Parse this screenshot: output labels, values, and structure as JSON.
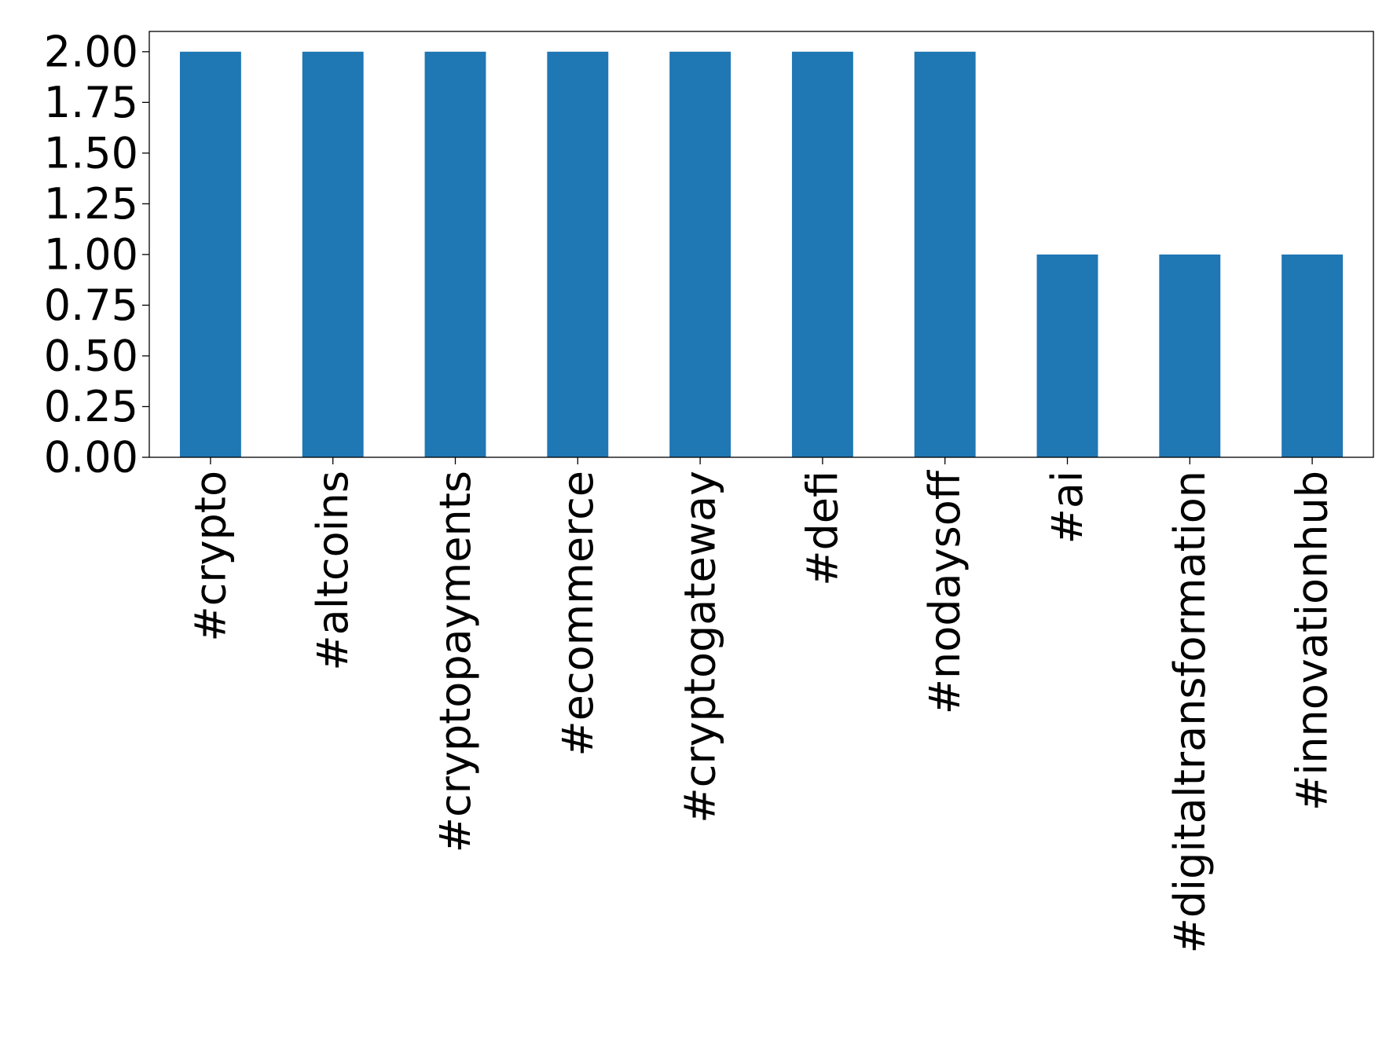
{
  "chart_data": {
    "type": "bar",
    "title": "",
    "xlabel": "",
    "ylabel": "",
    "categories": [
      "#crypto",
      "#altcoins",
      "#cryptopayments",
      "#ecommerce",
      "#cryptogateway",
      "#defi",
      "#nodaysoff",
      "#ai",
      "#digitaltransformation",
      "#innovationhub"
    ],
    "values": [
      2,
      2,
      2,
      2,
      2,
      2,
      2,
      1,
      1,
      1
    ],
    "ylim": [
      0,
      2.1
    ],
    "yticks": [
      "0.00",
      "0.25",
      "0.50",
      "0.75",
      "1.00",
      "1.25",
      "1.50",
      "1.75",
      "2.00"
    ],
    "grid": false,
    "legend": "none",
    "bar_color": "#1f77b4",
    "x_tick_rotation": "vertical"
  }
}
